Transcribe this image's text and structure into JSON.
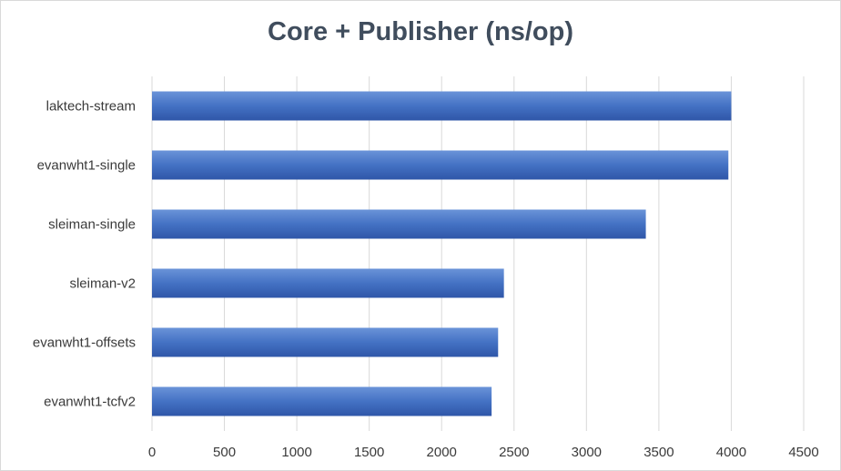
{
  "chart_data": {
    "type": "bar",
    "orientation": "horizontal",
    "title": "Core + Publisher (ns/op)",
    "categories": [
      "laktech-stream",
      "evanwht1-single",
      "sleiman-single",
      "sleiman-v2",
      "evanwht1-offsets",
      "evanwht1-tcfv2"
    ],
    "values": [
      4000,
      3980,
      3410,
      2430,
      2390,
      2345
    ],
    "xlim": [
      0,
      4500
    ],
    "xticks": [
      0,
      500,
      1000,
      1500,
      2000,
      2500,
      3000,
      3500,
      4000,
      4500
    ],
    "xlabel": "",
    "ylabel": "",
    "grid": true,
    "legend": "none",
    "bar_color": "#4472c4",
    "bar_color_dark": "#2f56a8"
  }
}
